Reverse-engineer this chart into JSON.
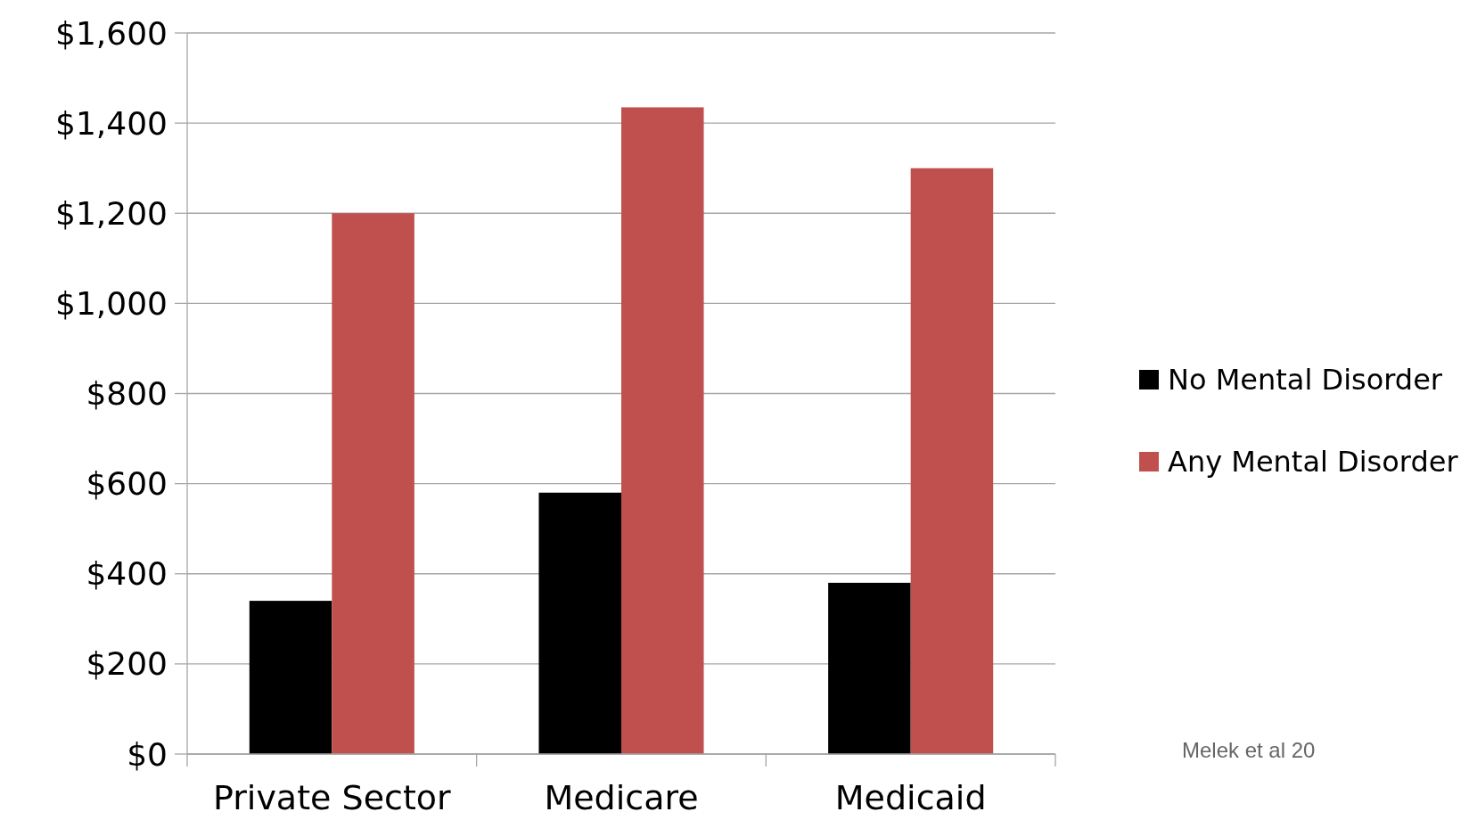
{
  "chart_data": {
    "type": "bar",
    "categories": [
      "Private Sector",
      "Medicare",
      "Medicaid"
    ],
    "series": [
      {
        "name": "No Mental Disorder",
        "color": "#000000",
        "values": [
          340,
          580,
          380
        ]
      },
      {
        "name": "Any Mental Disorder",
        "color": "#c0504d",
        "values": [
          1200,
          1435,
          1300
        ]
      }
    ],
    "ylim": [
      0,
      1600
    ],
    "yticks": [
      {
        "value": 0,
        "label": "$0"
      },
      {
        "value": 200,
        "label": "$200"
      },
      {
        "value": 400,
        "label": "$400"
      },
      {
        "value": 600,
        "label": "$600"
      },
      {
        "value": 800,
        "label": "$800"
      },
      {
        "value": 1000,
        "label": "$1,000"
      },
      {
        "value": 1200,
        "label": "$1,200"
      },
      {
        "value": 1400,
        "label": "$1,400"
      },
      {
        "value": 1600,
        "label": "$1,600"
      }
    ],
    "grid": "y",
    "legend": "right",
    "annotations": [
      "Melek et al 20"
    ]
  }
}
